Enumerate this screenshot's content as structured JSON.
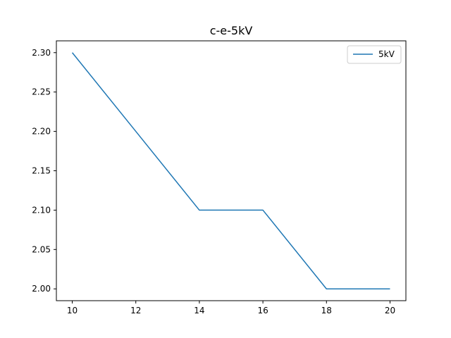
{
  "chart_data": {
    "type": "line",
    "title": "c-e-5kV",
    "xlabel": "",
    "ylabel": "",
    "x": [
      10,
      12,
      14,
      16,
      18,
      20
    ],
    "series": [
      {
        "name": "5kV",
        "color": "#1f77b4",
        "values": [
          2.3,
          2.2,
          2.1,
          2.1,
          2.0,
          2.0
        ]
      }
    ],
    "xlim": [
      9.5,
      20.5
    ],
    "ylim": [
      1.985,
      2.315
    ],
    "xticks": [
      10,
      12,
      14,
      16,
      18,
      20
    ],
    "yticks": [
      2.0,
      2.05,
      2.1,
      2.15,
      2.2,
      2.25,
      2.3
    ],
    "xtick_labels": [
      "10",
      "12",
      "14",
      "16",
      "18",
      "20"
    ],
    "ytick_labels": [
      "2.00",
      "2.05",
      "2.10",
      "2.15",
      "2.20",
      "2.25",
      "2.30"
    ],
    "grid": false,
    "legend": "top-right"
  }
}
